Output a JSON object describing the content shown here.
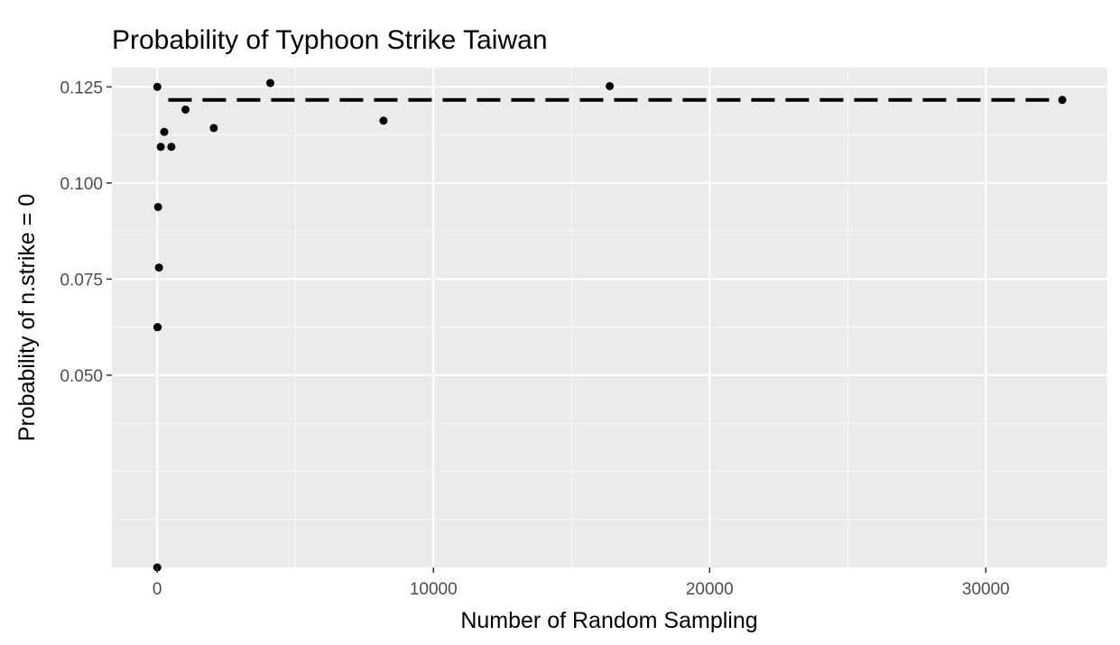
{
  "chart_data": {
    "type": "scatter",
    "title": "Probability of Typhoon Strike Taiwan",
    "xlabel": "Number of Random Sampling",
    "ylabel": "Probability of n.strike = 0",
    "xlim": [
      -1640,
      34400
    ],
    "ylim": [
      0.0,
      0.13
    ],
    "x_ticks": [
      0,
      10000,
      20000,
      30000
    ],
    "x_tick_labels": [
      "0",
      "10000",
      "20000",
      "30000"
    ],
    "y_ticks": [
      0.05,
      0.075,
      0.1,
      0.125
    ],
    "y_tick_labels": [
      "0.050",
      "0.075",
      "0.100",
      "0.125"
    ],
    "grid": true,
    "background": "#ebebeb",
    "point_color": "#000000",
    "points": [
      {
        "x": 2,
        "y": 0.0
      },
      {
        "x": 4,
        "y": 0.125
      },
      {
        "x": 8,
        "y": 0.0625
      },
      {
        "x": 16,
        "y": 0.0625
      },
      {
        "x": 32,
        "y": 0.09375
      },
      {
        "x": 64,
        "y": 0.078
      },
      {
        "x": 128,
        "y": 0.1094
      },
      {
        "x": 256,
        "y": 0.1133
      },
      {
        "x": 512,
        "y": 0.1094
      },
      {
        "x": 1024,
        "y": 0.1191
      },
      {
        "x": 2048,
        "y": 0.1143
      },
      {
        "x": 4096,
        "y": 0.126
      },
      {
        "x": 8192,
        "y": 0.1162
      },
      {
        "x": 16384,
        "y": 0.1252
      },
      {
        "x": 32768,
        "y": 0.1216
      }
    ],
    "reference_line": {
      "y": 0.1216,
      "style": "dashed",
      "color": "#000000",
      "x_start": 400,
      "x_end": 32768
    }
  }
}
